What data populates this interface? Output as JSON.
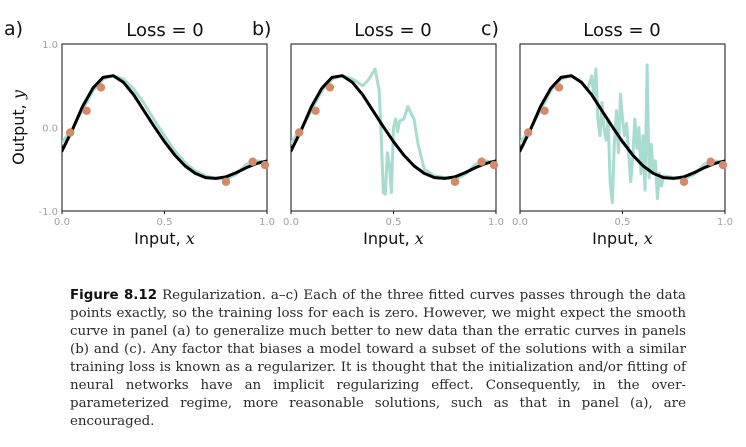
{
  "chart_data": [
    {
      "type": "line",
      "panel_letter": "a)",
      "title": "Loss = 0",
      "xlabel": "Input,",
      "xlabel_var": "x",
      "ylabel": "Output,",
      "ylabel_var": "y",
      "xlim": [
        0,
        1
      ],
      "ylim": [
        -1,
        1
      ],
      "xticks": [
        "0.0",
        "0.5",
        "1.0"
      ],
      "yticks": [
        "1.0",
        "0.0",
        "-1.0"
      ],
      "series": [
        {
          "role": "smooth",
          "color": "#000000",
          "x": [
            0.0,
            0.05,
            0.1,
            0.15,
            0.2,
            0.25,
            0.3,
            0.35,
            0.4,
            0.45,
            0.5,
            0.55,
            0.6,
            0.65,
            0.7,
            0.75,
            0.8,
            0.85,
            0.9,
            0.95,
            1.0
          ],
          "y": [
            -0.28,
            -0.03,
            0.25,
            0.47,
            0.6,
            0.62,
            0.54,
            0.39,
            0.2,
            0.01,
            -0.17,
            -0.33,
            -0.46,
            -0.55,
            -0.6,
            -0.61,
            -0.59,
            -0.54,
            -0.48,
            -0.43,
            -0.4
          ]
        },
        {
          "role": "fitted",
          "color": "#a8dcd0",
          "x": [
            0.0,
            0.05,
            0.1,
            0.15,
            0.2,
            0.25,
            0.3,
            0.35,
            0.4,
            0.45,
            0.5,
            0.55,
            0.6,
            0.65,
            0.7,
            0.75,
            0.8,
            0.85,
            0.9,
            0.95,
            1.0
          ],
          "y": [
            -0.18,
            -0.02,
            0.21,
            0.44,
            0.58,
            0.62,
            0.58,
            0.46,
            0.29,
            0.09,
            -0.1,
            -0.28,
            -0.42,
            -0.52,
            -0.58,
            -0.61,
            -0.62,
            -0.56,
            -0.44,
            -0.4,
            -0.42
          ]
        }
      ],
      "points": {
        "color": "#d4896a",
        "x": [
          0.04,
          0.12,
          0.19,
          0.8,
          0.93,
          0.99
        ],
        "y": [
          -0.06,
          0.2,
          0.48,
          -0.65,
          -0.41,
          -0.45
        ]
      }
    },
    {
      "type": "line",
      "panel_letter": "b)",
      "title": "Loss = 0",
      "xlabel": "Input,",
      "xlabel_var": "x",
      "xlim": [
        0,
        1
      ],
      "ylim": [
        -1,
        1
      ],
      "xticks": [
        "0.0",
        "0.5",
        "1.0"
      ],
      "series": [
        {
          "role": "smooth",
          "color": "#000000",
          "x": [
            0.0,
            0.05,
            0.1,
            0.15,
            0.2,
            0.25,
            0.3,
            0.35,
            0.4,
            0.45,
            0.5,
            0.55,
            0.6,
            0.65,
            0.7,
            0.75,
            0.8,
            0.85,
            0.9,
            0.95,
            1.0
          ],
          "y": [
            -0.28,
            -0.03,
            0.25,
            0.47,
            0.6,
            0.62,
            0.54,
            0.39,
            0.2,
            0.01,
            -0.17,
            -0.33,
            -0.46,
            -0.55,
            -0.6,
            -0.61,
            -0.59,
            -0.54,
            -0.48,
            -0.43,
            -0.4
          ]
        },
        {
          "role": "fitted",
          "color": "#a8dcd0",
          "x": [
            0.0,
            0.05,
            0.1,
            0.15,
            0.2,
            0.25,
            0.3,
            0.35,
            0.38,
            0.41,
            0.43,
            0.44,
            0.45,
            0.46,
            0.47,
            0.48,
            0.49,
            0.5,
            0.51,
            0.52,
            0.53,
            0.55,
            0.57,
            0.58,
            0.6,
            0.62,
            0.65,
            0.7,
            0.75,
            0.8,
            0.85,
            0.9,
            0.95,
            1.0
          ],
          "y": [
            -0.18,
            -0.02,
            0.21,
            0.44,
            0.58,
            0.62,
            0.58,
            0.5,
            0.58,
            0.7,
            0.45,
            -0.1,
            -0.78,
            -0.8,
            -0.3,
            -0.45,
            -0.78,
            0.0,
            0.1,
            -0.05,
            0.08,
            0.1,
            0.25,
            0.2,
            0.1,
            -0.2,
            -0.5,
            -0.58,
            -0.6,
            -0.62,
            -0.56,
            -0.44,
            -0.4,
            -0.42
          ]
        }
      ],
      "points": {
        "color": "#d4896a",
        "x": [
          0.04,
          0.12,
          0.19,
          0.8,
          0.93,
          0.99
        ],
        "y": [
          -0.06,
          0.2,
          0.48,
          -0.65,
          -0.41,
          -0.45
        ]
      }
    },
    {
      "type": "line",
      "panel_letter": "c)",
      "title": "Loss = 0",
      "xlabel": "Input,",
      "xlabel_var": "x",
      "xlim": [
        0,
        1
      ],
      "ylim": [
        -1,
        1
      ],
      "xticks": [
        "0.0",
        "0.5",
        "1.0"
      ],
      "series": [
        {
          "role": "smooth",
          "color": "#000000",
          "x": [
            0.0,
            0.05,
            0.1,
            0.15,
            0.2,
            0.25,
            0.3,
            0.35,
            0.4,
            0.45,
            0.5,
            0.55,
            0.6,
            0.65,
            0.7,
            0.75,
            0.8,
            0.85,
            0.9,
            0.95,
            1.0
          ],
          "y": [
            -0.28,
            -0.03,
            0.25,
            0.47,
            0.6,
            0.62,
            0.54,
            0.39,
            0.2,
            0.01,
            -0.17,
            -0.33,
            -0.46,
            -0.55,
            -0.6,
            -0.61,
            -0.59,
            -0.54,
            -0.48,
            -0.43,
            -0.4
          ]
        },
        {
          "role": "fitted",
          "color": "#a8dcd0",
          "x": [
            0.0,
            0.05,
            0.1,
            0.15,
            0.2,
            0.25,
            0.3,
            0.33,
            0.35,
            0.36,
            0.37,
            0.38,
            0.39,
            0.4,
            0.41,
            0.42,
            0.43,
            0.44,
            0.45,
            0.46,
            0.47,
            0.48,
            0.49,
            0.5,
            0.51,
            0.52,
            0.53,
            0.54,
            0.55,
            0.56,
            0.57,
            0.58,
            0.59,
            0.6,
            0.61,
            0.62,
            0.63,
            0.64,
            0.65,
            0.66,
            0.67,
            0.68,
            0.69,
            0.7,
            0.75,
            0.8,
            0.85,
            0.9,
            0.95,
            1.0
          ],
          "y": [
            -0.18,
            -0.02,
            0.21,
            0.44,
            0.58,
            0.62,
            0.55,
            0.45,
            0.62,
            0.35,
            0.7,
            0.1,
            -0.1,
            0.3,
            0.0,
            -0.15,
            0.1,
            -0.68,
            -0.9,
            -0.2,
            0.2,
            -0.3,
            0.4,
            0.1,
            -0.1,
            0.05,
            -0.3,
            -0.65,
            -0.35,
            0.1,
            -0.25,
            0.0,
            -0.55,
            -0.1,
            -0.75,
            0.75,
            -0.6,
            -0.2,
            -0.55,
            -0.4,
            -0.85,
            -0.55,
            -0.7,
            -0.58,
            -0.6,
            -0.62,
            -0.56,
            -0.44,
            -0.4,
            -0.42
          ]
        }
      ],
      "points": {
        "color": "#d4896a",
        "x": [
          0.04,
          0.12,
          0.19,
          0.8,
          0.93,
          0.99
        ],
        "y": [
          -0.06,
          0.2,
          0.48,
          -0.65,
          -0.41,
          -0.45
        ]
      }
    }
  ],
  "caption": {
    "label": "Figure 8.12",
    "text": " Regularization. a–c) Each of the three fitted curves passes through the data points exactly, so the training loss for each is zero. However, we might expect the smooth curve in panel (a) to generalize much better to new data than the erratic curves in panels (b) and (c). Any factor that biases a model toward a subset of the solutions with a similar training loss is known as a regularizer. It is thought that the initialization and/or fitting of neural networks have an implicit regularizing effect. Consequently, in the over-parameterized regime, more reasonable solutions, such as that in panel (a), are encouraged."
  }
}
